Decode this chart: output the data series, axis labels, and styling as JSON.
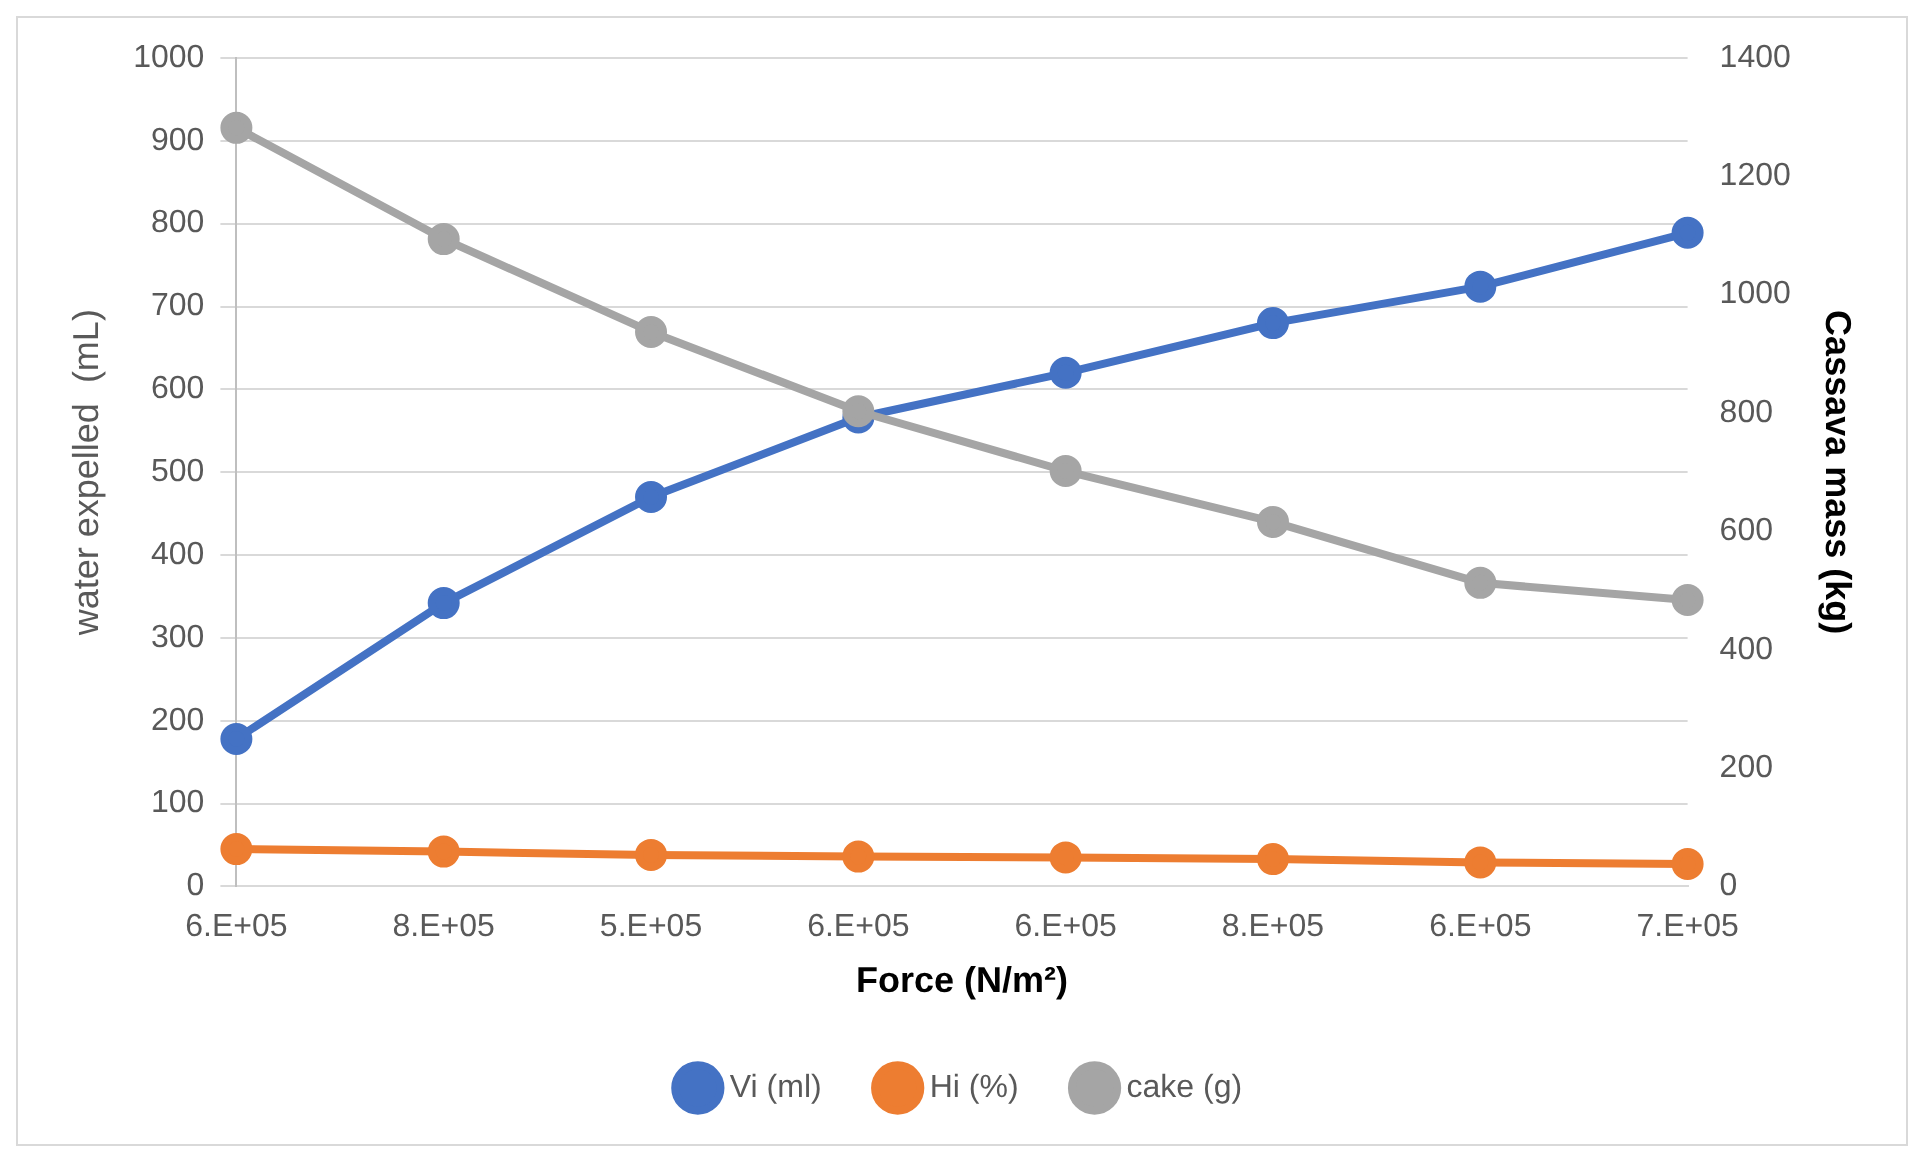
{
  "chart_data": {
    "type": "line",
    "xlabel": "Force (N/m²)",
    "ylabel": "water expelled  (mL)",
    "y2label": "Cassava mass (kg)",
    "categories": [
      "6.E+05",
      "8.E+05",
      "5.E+05",
      "6.E+05",
      "6.E+05",
      "8.E+05",
      "6.E+05",
      "7.E+05"
    ],
    "series": [
      {
        "name": "Vi (ml)",
        "color": "#4472c4",
        "values": [
          178,
          342,
          470,
          566,
          620,
          680,
          724,
          789
        ]
      },
      {
        "name": "Hi (%)",
        "color": "#ed7d31",
        "values": [
          45,
          42,
          38,
          36,
          35,
          33,
          29,
          27
        ]
      },
      {
        "name": "cake (g)",
        "color": "#a5a5a5",
        "axis": "y2",
        "values": [
          1282,
          1094,
          937,
          803,
          702,
          616,
          513,
          484
        ]
      }
    ],
    "ylim": [
      0,
      1000
    ],
    "yticks": [
      0,
      100,
      200,
      300,
      400,
      500,
      600,
      700,
      800,
      900,
      1000
    ],
    "y2lim": [
      0,
      1400
    ],
    "y2ticks": [
      0,
      200,
      400,
      600,
      800,
      1000,
      1200,
      1400
    ],
    "grid": "y",
    "legend": "bottom",
    "marker": "circle",
    "line_style": "solid"
  }
}
